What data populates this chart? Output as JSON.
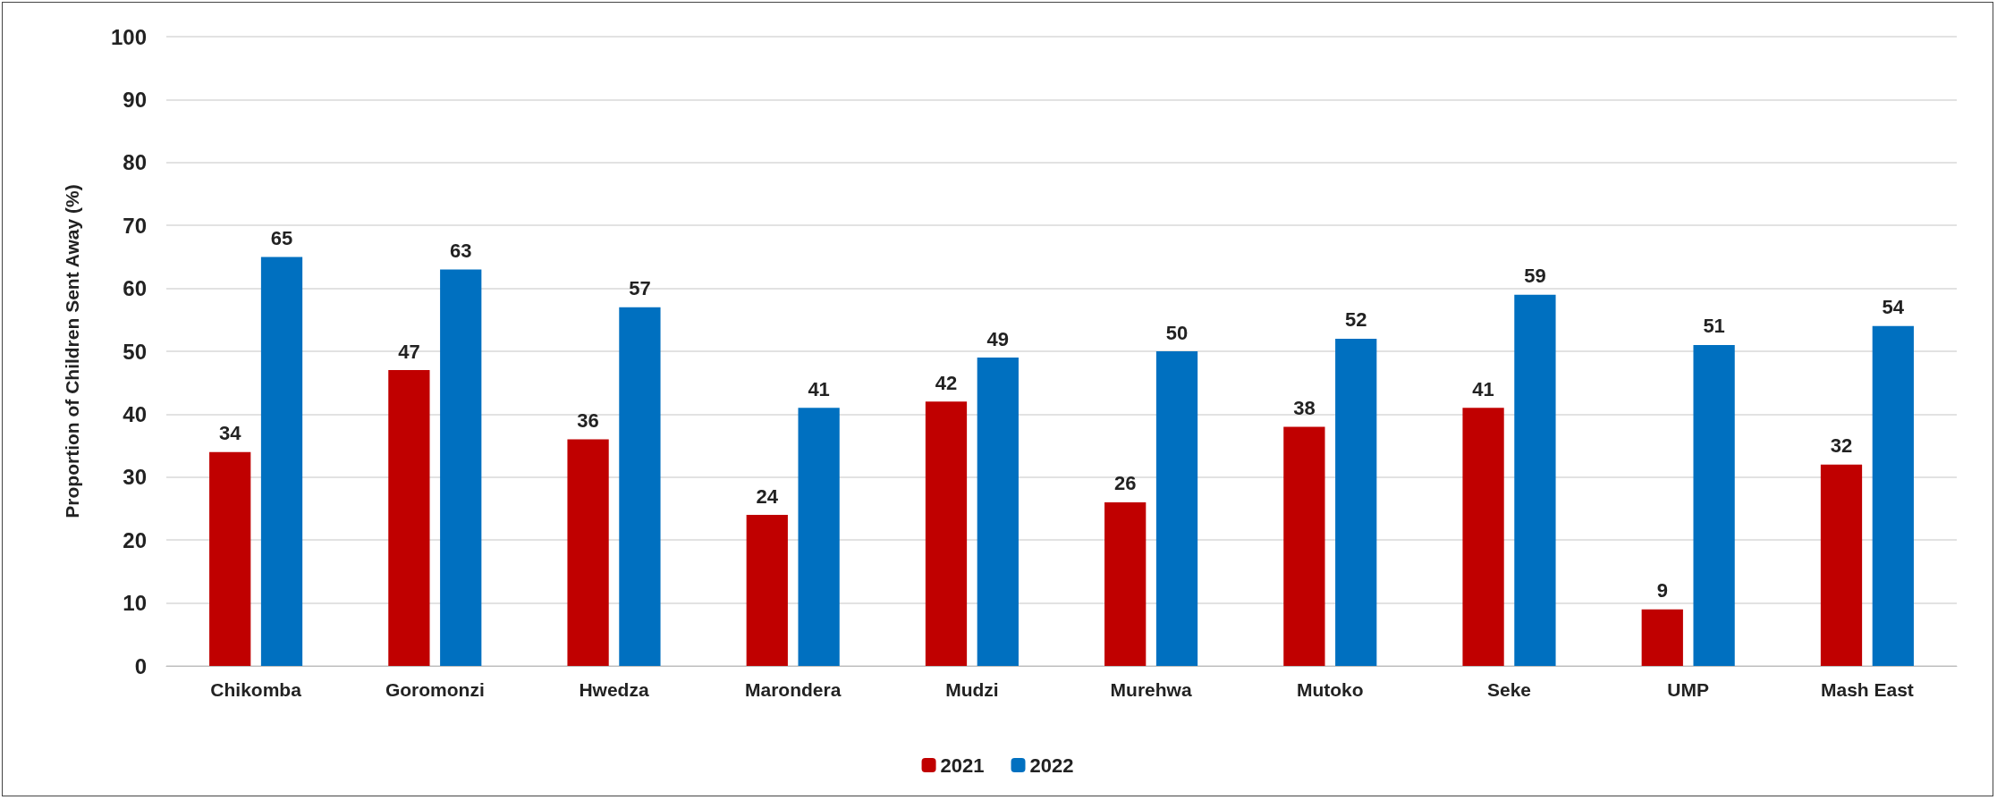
{
  "chart_data": {
    "type": "bar",
    "ylabel": "Proportion of Children Sent Away (%)",
    "categories": [
      "Chikomba",
      "Goromonzi",
      "Hwedza",
      "Marondera",
      "Mudzi",
      "Murehwa",
      "Mutoko",
      "Seke",
      "UMP",
      "Mash East"
    ],
    "series": [
      {
        "name": "2021",
        "color": "#c00000",
        "values": [
          34,
          47,
          36,
          24,
          42,
          26,
          38,
          41,
          9,
          32
        ]
      },
      {
        "name": "2022",
        "color": "#0070c0",
        "values": [
          65,
          63,
          57,
          41,
          49,
          50,
          52,
          59,
          51,
          54
        ]
      }
    ],
    "ylim": [
      0,
      100
    ],
    "yticks": [
      0,
      10,
      20,
      30,
      40,
      50,
      60,
      70,
      80,
      90,
      100
    ],
    "grid": "y",
    "legend": "bottom",
    "data_labels": true
  }
}
